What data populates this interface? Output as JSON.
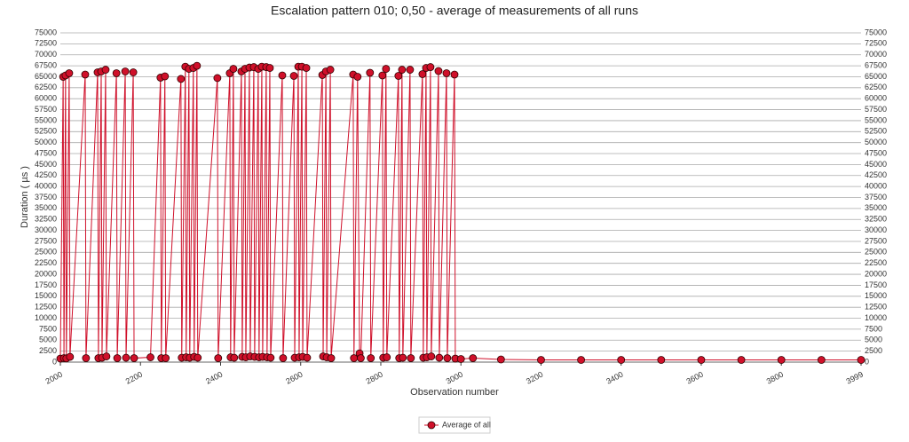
{
  "chart_data": {
    "type": "line",
    "title": "Escalation pattern 010; 0,50 - average of measurements of all runs",
    "x_label": "Observation number",
    "y_label": "Duration ( µs )",
    "xlim": [
      2000,
      3999
    ],
    "xticks": [
      2000,
      2200,
      2400,
      2600,
      2800,
      3000,
      3200,
      3400,
      3600,
      3800,
      3999
    ],
    "ylim": [
      0,
      75000
    ],
    "yticks": [
      0,
      2500,
      5000,
      7500,
      10000,
      12500,
      15000,
      17500,
      20000,
      22500,
      25000,
      27500,
      30000,
      32500,
      35000,
      37500,
      40000,
      42500,
      45000,
      47500,
      50000,
      52500,
      55000,
      57500,
      60000,
      62500,
      65000,
      67500,
      70000,
      72500,
      75000
    ],
    "grid": true,
    "legend": "bottom",
    "x": [
      2000,
      2007,
      2009,
      2013,
      2015,
      2022,
      2024,
      2062,
      2064,
      2093,
      2095,
      2102,
      2104,
      2113,
      2115,
      2140,
      2142,
      2162,
      2164,
      2182,
      2184,
      2225,
      2250,
      2252,
      2261,
      2263,
      2301,
      2303,
      2312,
      2314,
      2321,
      2323,
      2332,
      2334,
      2341,
      2343,
      2392,
      2394,
      2423,
      2425,
      2432,
      2434,
      2452,
      2454,
      2461,
      2463,
      2472,
      2474,
      2483,
      2485,
      2494,
      2496,
      2503,
      2505,
      2514,
      2516,
      2523,
      2525,
      2554,
      2556,
      2583,
      2585,
      2594,
      2596,
      2603,
      2605,
      2614,
      2616,
      2654,
      2656,
      2663,
      2665,
      2674,
      2676,
      2731,
      2733,
      2742,
      2747,
      2750,
      2773,
      2775,
      2804,
      2806,
      2813,
      2815,
      2844,
      2846,
      2853,
      2855,
      2873,
      2875,
      2904,
      2906,
      2913,
      2915,
      2924,
      2926,
      2944,
      2946,
      2964,
      2966,
      2984,
      2986,
      3000,
      3030,
      3100,
      3200,
      3300,
      3400,
      3500,
      3600,
      3700,
      3800,
      3900,
      3999
    ],
    "series": [
      {
        "name": "Average of all",
        "color": "#d0102a",
        "values": [
          800,
          65000,
          900,
          65300,
          850,
          65800,
          1200,
          65500,
          900,
          66000,
          900,
          66200,
          1000,
          66600,
          1300,
          65800,
          900,
          66200,
          1000,
          66000,
          900,
          1100,
          64800,
          900,
          65100,
          900,
          64500,
          1000,
          67300,
          1100,
          66800,
          1000,
          67000,
          1200,
          67500,
          1000,
          64700,
          900,
          65800,
          1100,
          66800,
          1000,
          66200,
          1200,
          66800,
          1100,
          67100,
          1300,
          67200,
          1200,
          66800,
          1100,
          67300,
          1200,
          67200,
          1100,
          67000,
          1000,
          65300,
          900,
          65200,
          1000,
          67300,
          1100,
          67300,
          1200,
          67000,
          1000,
          65400,
          1300,
          66200,
          1100,
          66600,
          900,
          65500,
          900,
          65000,
          2000,
          900,
          65900,
          900,
          65300,
          1000,
          66800,
          1100,
          65200,
          900,
          66600,
          1000,
          66600,
          900,
          65600,
          1000,
          67000,
          1100,
          67200,
          1300,
          66300,
          1000,
          65800,
          900,
          65500,
          800,
          700,
          900,
          600,
          500,
          500,
          500,
          500,
          500,
          500,
          500,
          500,
          500
        ]
      }
    ]
  }
}
